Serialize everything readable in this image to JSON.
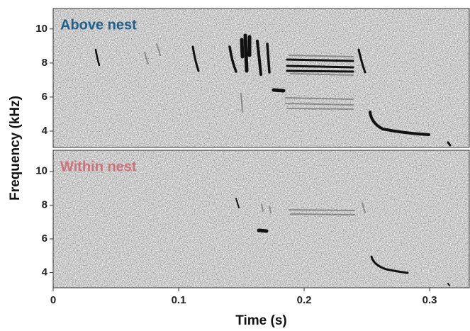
{
  "chart_data": [
    {
      "type": "spectrogram",
      "annotation": "Above nest",
      "annotation_color": "#1f5f8b",
      "y_label": "Frequency (kHz)",
      "xlim": [
        0,
        0.3316
      ],
      "ylim": [
        3.04,
        11.2
      ],
      "yticks": [
        4,
        6,
        8,
        10
      ]
    },
    {
      "type": "spectrogram",
      "annotation": "Within nest",
      "annotation_color": "#d0707a",
      "x_label": "Time (s)",
      "xlim": [
        0,
        0.3316
      ],
      "ylim": [
        3.1,
        11.25
      ],
      "yticks": [
        4,
        6,
        8,
        10
      ],
      "xticks": [
        0,
        0.1,
        0.2,
        0.3
      ]
    }
  ]
}
